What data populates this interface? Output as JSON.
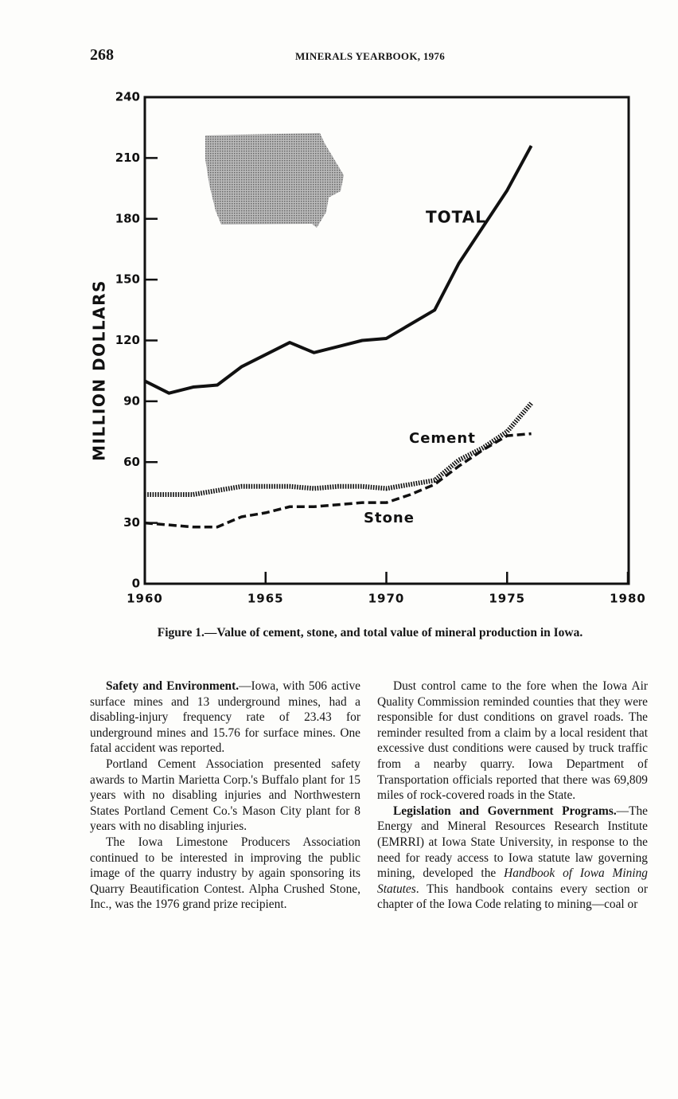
{
  "header": {
    "page_number": "268",
    "title": "MINERALS YEARBOOK, 1976"
  },
  "chart_data": {
    "type": "line",
    "y_label": "MILLION DOLLARS",
    "x": [
      1960,
      1961,
      1962,
      1963,
      1964,
      1965,
      1966,
      1967,
      1968,
      1969,
      1970,
      1971,
      1972,
      1973,
      1974,
      1975,
      1976
    ],
    "series": [
      {
        "name": "TOTAL",
        "color": "#111111",
        "style": "solid",
        "values": [
          100,
          94,
          97,
          98,
          107,
          113,
          119,
          114,
          117,
          120,
          121,
          128,
          135,
          158,
          176,
          194,
          216
        ]
      },
      {
        "name": "Cement",
        "color": "#111111",
        "style": "dotted",
        "values": [
          44,
          44,
          44,
          46,
          48,
          48,
          48,
          47,
          48,
          48,
          47,
          49,
          51,
          61,
          67,
          75,
          89
        ]
      },
      {
        "name": "Stone",
        "color": "#111111",
        "style": "dashed",
        "values": [
          30,
          29,
          28,
          28,
          33,
          35,
          38,
          38,
          39,
          40,
          40,
          44,
          49,
          58,
          66,
          73,
          74
        ]
      }
    ],
    "xlim": [
      1960,
      1980
    ],
    "xticks": [
      1960,
      1965,
      1970,
      1975,
      1980
    ],
    "ylim": [
      0,
      240
    ],
    "yticks": [
      0,
      30,
      60,
      90,
      120,
      150,
      180,
      210,
      240
    ],
    "grid": false
  },
  "caption": "Figure 1.—Value of cement, stone, and total value of mineral production in Iowa.",
  "columns": [
    {
      "paragraphs": [
        {
          "runs": [
            {
              "text": "Safety and Environment.",
              "style": "bold"
            },
            "—Iowa, with 506 active surface mines and 13 underground mines, had a disabling-injury frequency rate of 23.43 for underground mines and 15.76 for surface mines. One fatal accident was reported."
          ]
        },
        {
          "runs": [
            "Portland Cement Association presented safety awards to Martin Marietta Corp.'s Buffalo plant for 15 years with no disabling injuries and Northwestern States Portland Cement Co.'s Mason City plant for 8 years with no disabling injuries."
          ]
        },
        {
          "runs": [
            "The Iowa Limestone Producers Association continued to be interested in improving the public image of the quarry industry by again sponsoring its Quarry Beautification Contest. Alpha Crushed Stone, Inc., was the 1976 grand prize recipient."
          ]
        }
      ]
    },
    {
      "paragraphs": [
        {
          "runs": [
            "Dust control came to the fore when the Iowa Air Quality Commission reminded counties that they were responsible for dust conditions on gravel roads. The reminder resulted from a claim by a local resident that excessive dust conditions were caused by truck traffic from a nearby quarry. Iowa Department of Transportation officials reported that there was 69,809 miles of rock-covered roads in the State."
          ]
        },
        {
          "runs": [
            {
              "text": "Legislation and Government Programs.",
              "style": "bold"
            },
            "—The Energy and Mineral Resources Research Institute (EMRRI) at Iowa State University, in response to the need for ready access to Iowa statute law governing mining, developed the ",
            {
              "text": "Handbook of Iowa Mining Statutes",
              "style": "italic"
            },
            ". This handbook contains every section or chapter of the Iowa Code relating to mining—coal or"
          ]
        }
      ]
    }
  ]
}
